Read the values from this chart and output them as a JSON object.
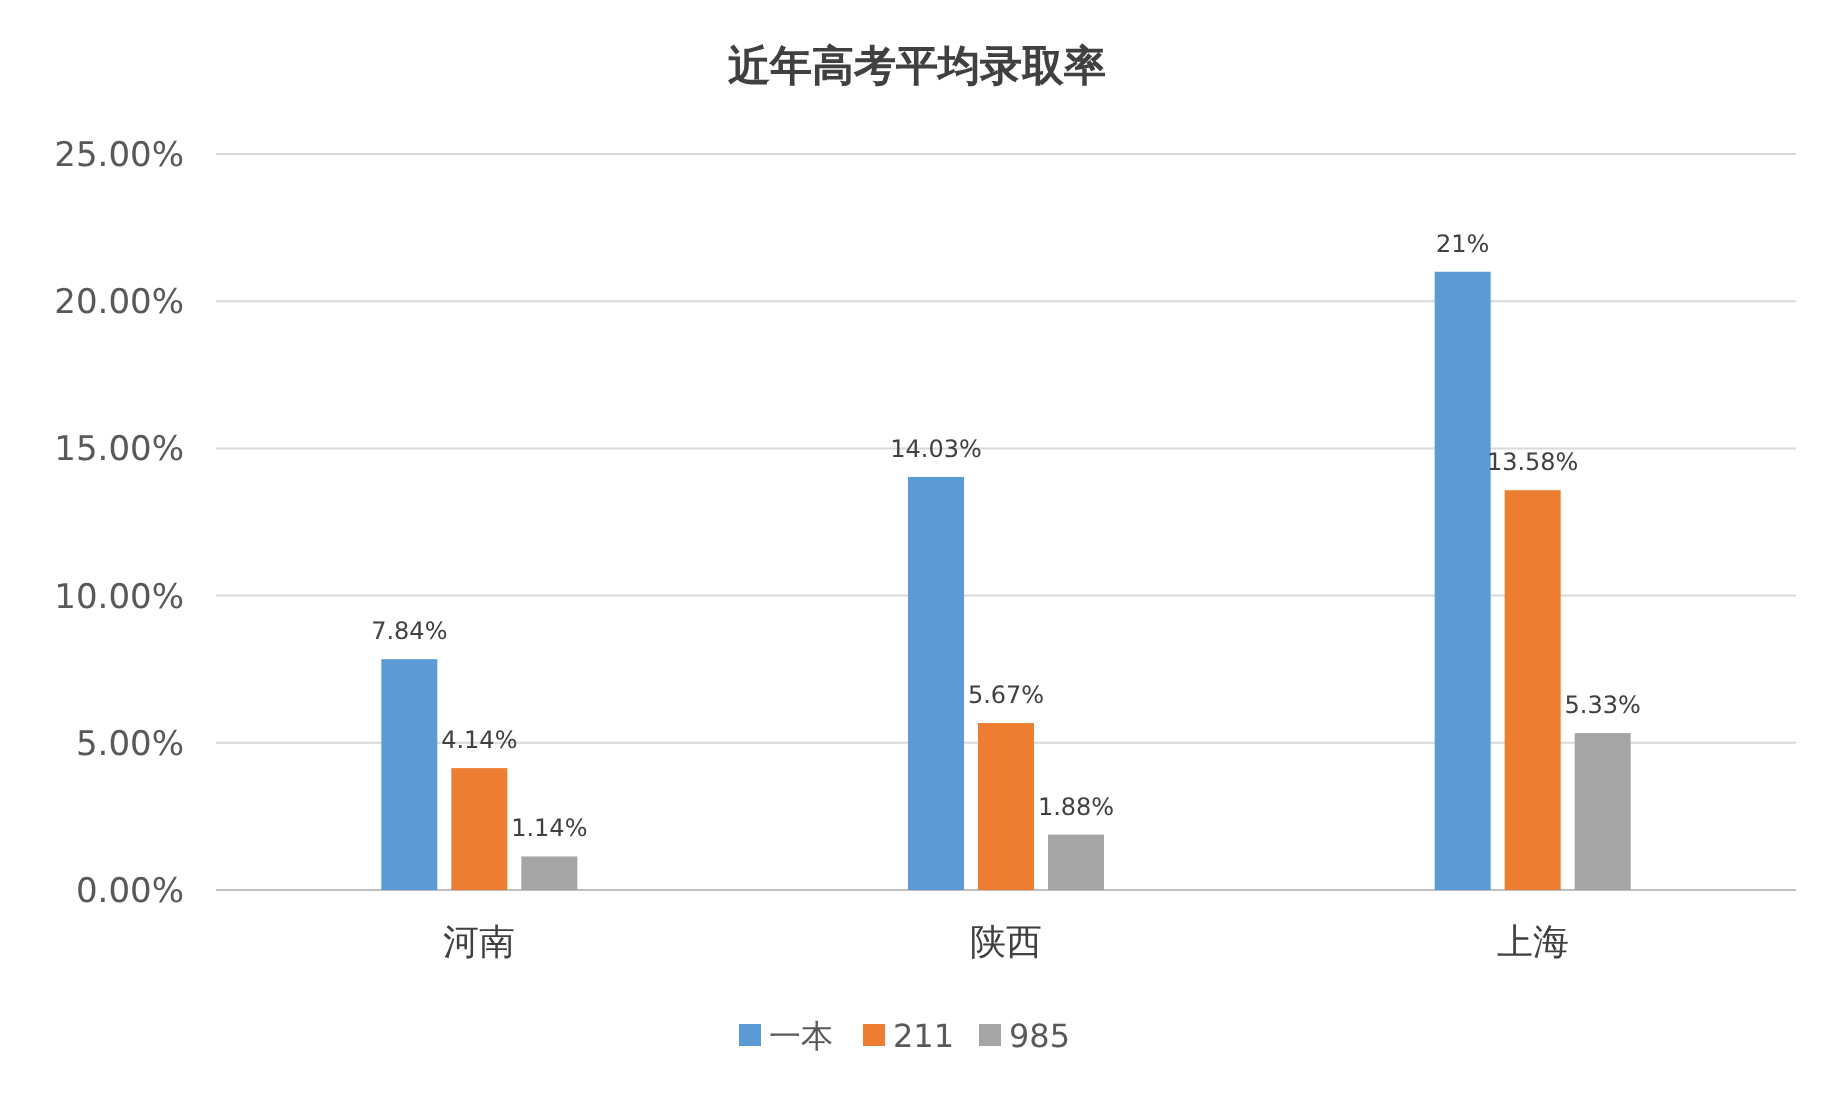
{
  "chart_data": {
    "type": "bar",
    "title": "近年高考平均录取率",
    "categories": [
      "河南",
      "陕西",
      "上海"
    ],
    "series": [
      {
        "name": "一本",
        "color": "#5b9bd5",
        "values": [
          7.84,
          14.03,
          21
        ],
        "value_labels": [
          "7.84%",
          "14.03%",
          "21%"
        ]
      },
      {
        "name": "211",
        "color": "#ed7d31",
        "values": [
          4.14,
          5.67,
          13.58
        ],
        "value_labels": [
          "4.14%",
          "5.67%",
          "13.58%"
        ]
      },
      {
        "name": "985",
        "color": "#a5a5a5",
        "values": [
          1.14,
          1.88,
          5.33
        ],
        "value_labels": [
          "1.14%",
          "1.88%",
          "5.33%"
        ]
      }
    ],
    "ylim": [
      0,
      25
    ],
    "yticks": [
      {
        "value": 0,
        "label": "0.00%"
      },
      {
        "value": 5,
        "label": "5.00%"
      },
      {
        "value": 10,
        "label": "10.00%"
      },
      {
        "value": 15,
        "label": "15.00%"
      },
      {
        "value": 20,
        "label": "20.00%"
      },
      {
        "value": 25,
        "label": "25.00%"
      }
    ],
    "grid": "y",
    "legend": "bottom"
  }
}
